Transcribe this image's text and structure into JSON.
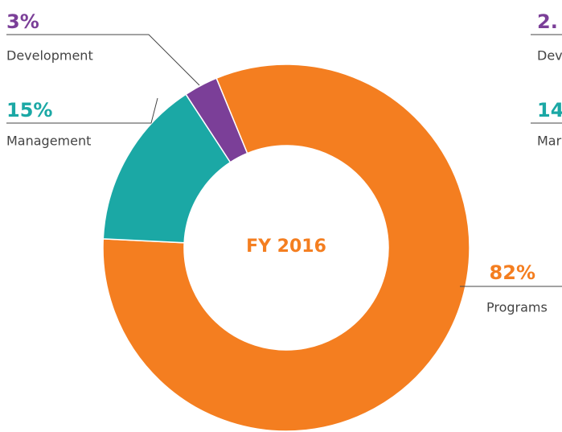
{
  "chart_data": {
    "type": "pie",
    "center_label": "FY 2016",
    "categories": [
      "Development",
      "Management",
      "Programs"
    ],
    "values": [
      3,
      15,
      82
    ],
    "value_labels": [
      "3%",
      "15%",
      "82%"
    ],
    "colors": [
      "#7b3f98",
      "#1ba8a5",
      "#f47e20"
    ]
  },
  "cut_off_labels": [
    "2.",
    "Dev",
    "14",
    "Mar"
  ]
}
